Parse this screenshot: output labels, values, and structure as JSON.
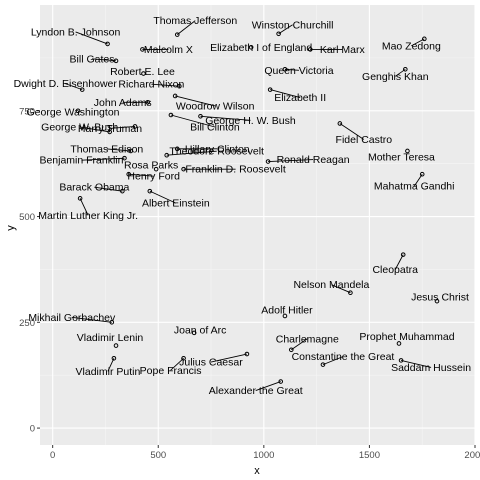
{
  "chart_data": {
    "type": "scatter",
    "xlabel": "x",
    "ylabel": "y",
    "xlim": [
      -60,
      2000
    ],
    "ylim": [
      -40,
      1000
    ],
    "xticks": [
      0,
      500,
      1000,
      1500,
      2000
    ],
    "yticks": [
      0,
      250,
      500,
      750
    ],
    "grid": true,
    "points": [
      {
        "name": "Thomas Jefferson",
        "x": 590,
        "y": 930
      },
      {
        "name": "Winston Churchill",
        "x": 1070,
        "y": 932
      },
      {
        "name": "Lyndon B. Johnson",
        "x": 260,
        "y": 908
      },
      {
        "name": "Malcolm X",
        "x": 425,
        "y": 895
      },
      {
        "name": "Elizabeth I of England",
        "x": 940,
        "y": 900
      },
      {
        "name": "Karl Marx",
        "x": 1220,
        "y": 895
      },
      {
        "name": "Mao Zedong",
        "x": 1760,
        "y": 920
      },
      {
        "name": "Bill Gates",
        "x": 300,
        "y": 868
      },
      {
        "name": "Robert E. Lee",
        "x": 430,
        "y": 838
      },
      {
        "name": "Queen Victoria",
        "x": 1100,
        "y": 848
      },
      {
        "name": "Genghis Khan",
        "x": 1670,
        "y": 848
      },
      {
        "name": "Dwight D. Eisenhower",
        "x": 140,
        "y": 800
      },
      {
        "name": "Richard Nixon",
        "x": 600,
        "y": 808
      },
      {
        "name": "Elizabeth II",
        "x": 1030,
        "y": 800
      },
      {
        "name": "John Adams",
        "x": 450,
        "y": 770
      },
      {
        "name": "Woodrow Wilson",
        "x": 580,
        "y": 785
      },
      {
        "name": "George Washington",
        "x": 120,
        "y": 750
      },
      {
        "name": "Bill Clinton",
        "x": 560,
        "y": 740
      },
      {
        "name": "George H. W. Bush",
        "x": 700,
        "y": 737
      },
      {
        "name": "Fidel Castro",
        "x": 1360,
        "y": 720
      },
      {
        "name": "George W. Bush",
        "x": 270,
        "y": 700
      },
      {
        "name": "Harry Truman",
        "x": 390,
        "y": 713
      },
      {
        "name": "Thomas Edison",
        "x": 370,
        "y": 655
      },
      {
        "name": "Hillary Clinton",
        "x": 590,
        "y": 660
      },
      {
        "name": "Mother Teresa",
        "x": 1680,
        "y": 655
      },
      {
        "name": "Benjamin Franklin",
        "x": 340,
        "y": 638
      },
      {
        "name": "Rosa Parks",
        "x": 490,
        "y": 612
      },
      {
        "name": "Theodore Roosevelt",
        "x": 540,
        "y": 645
      },
      {
        "name": "Ronald Reagan",
        "x": 1020,
        "y": 630
      },
      {
        "name": "Mahatma Gandhi",
        "x": 1750,
        "y": 600
      },
      {
        "name": "Henry Ford",
        "x": 360,
        "y": 600
      },
      {
        "name": "Franklin D. Roosevelt",
        "x": 620,
        "y": 612
      },
      {
        "name": "Barack Obama",
        "x": 330,
        "y": 560
      },
      {
        "name": "Albert Einstein",
        "x": 460,
        "y": 560
      },
      {
        "name": "Martin Luther King Jr.",
        "x": 130,
        "y": 543
      },
      {
        "name": "Cleopatra",
        "x": 1660,
        "y": 410
      },
      {
        "name": "Nelson Mandela",
        "x": 1410,
        "y": 320
      },
      {
        "name": "Jesus Christ",
        "x": 1820,
        "y": 300
      },
      {
        "name": "Mikhail Gorbachev",
        "x": 280,
        "y": 250
      },
      {
        "name": "Adolf Hitler",
        "x": 1100,
        "y": 265
      },
      {
        "name": "Joan of Arc",
        "x": 670,
        "y": 225
      },
      {
        "name": "Vladimir Lenin",
        "x": 300,
        "y": 195
      },
      {
        "name": "Charlemagne",
        "x": 1130,
        "y": 185
      },
      {
        "name": "Prophet Muhammad",
        "x": 1640,
        "y": 200
      },
      {
        "name": "Julius Caesar",
        "x": 920,
        "y": 175
      },
      {
        "name": "Vladimir Putin",
        "x": 290,
        "y": 165
      },
      {
        "name": "Pope Francis",
        "x": 620,
        "y": 165
      },
      {
        "name": "Constantine the Great",
        "x": 1280,
        "y": 150
      },
      {
        "name": "Saddam Hussein",
        "x": 1650,
        "y": 160
      },
      {
        "name": "Alexander the Great",
        "x": 1080,
        "y": 110
      }
    ]
  }
}
